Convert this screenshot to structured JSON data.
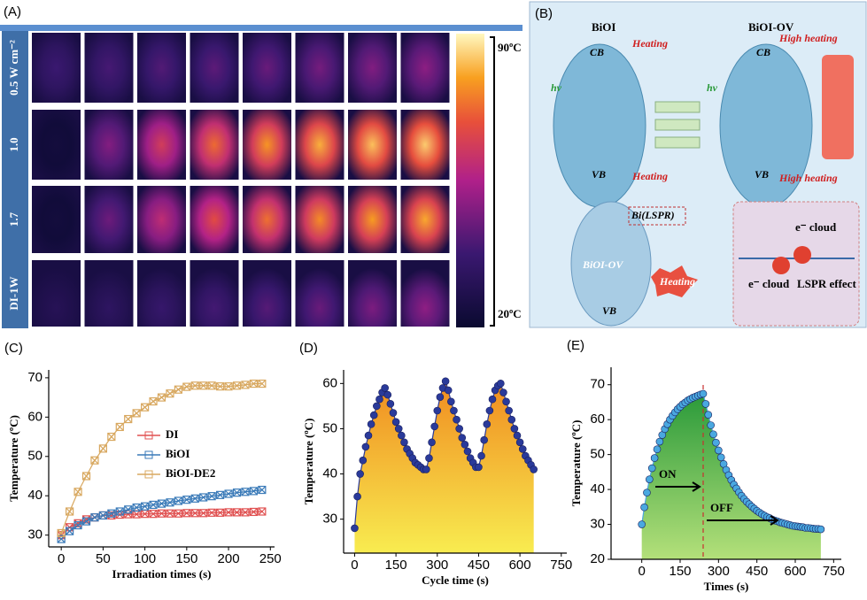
{
  "panel_a": {
    "label": "(A)",
    "rows": [
      "0.5 W cm⁻²",
      "1.0",
      "1.7",
      "DI-1W"
    ],
    "scale_max": "90ºC",
    "scale_min": "20ºC"
  },
  "panel_b": {
    "label": "(B)",
    "left": {
      "title": "BiOI",
      "light": "hv",
      "cb": "CB",
      "vb": "VB",
      "heat_top": "Heating",
      "heat_bottom": "Heating"
    },
    "right": {
      "title": "BiOI-OV",
      "light": "hv",
      "cb": "CB",
      "vb": "VB",
      "heat_top": "High heating",
      "heat_bottom": "High heating"
    },
    "bottom": {
      "bi": "Bi(LSPR)",
      "body": "BiOI-OV",
      "vb": "VB",
      "heating": "Heating",
      "cloud_top": "e⁻ cloud",
      "cloud_bottom": "e⁻ cloud",
      "effect": "LSPR effect"
    }
  },
  "chart_data": [
    {
      "type": "line",
      "label": "(C)",
      "xlabel": "Irradiation times (s)",
      "ylabel": "Temperature (ºC)",
      "marker": "x-box",
      "legend": "center-right",
      "x": [
        0,
        10,
        20,
        30,
        40,
        50,
        60,
        70,
        80,
        90,
        100,
        110,
        120,
        130,
        140,
        150,
        160,
        170,
        180,
        190,
        200,
        210,
        220,
        230,
        240
      ],
      "series": [
        {
          "name": "DI",
          "color": "#e05050",
          "values": [
            30,
            32,
            33,
            34,
            34.5,
            35,
            35,
            35.2,
            35.3,
            35.3,
            35.4,
            35.4,
            35.5,
            35.5,
            35.5,
            35.6,
            35.6,
            35.6,
            35.7,
            35.7,
            35.8,
            35.8,
            35.8,
            35.9,
            36
          ]
        },
        {
          "name": "BiOI",
          "color": "#3a7ab8",
          "values": [
            29,
            31,
            32.5,
            33.5,
            34.5,
            35,
            35.5,
            36,
            36.5,
            37,
            37.3,
            37.7,
            38,
            38.3,
            38.7,
            39,
            39.3,
            39.6,
            39.9,
            40.2,
            40.5,
            40.8,
            41,
            41.2,
            41.5
          ]
        },
        {
          "name": "BiOI-DE2",
          "color": "#d8a860",
          "values": [
            30.5,
            36,
            41,
            45,
            49,
            52,
            55,
            57.5,
            59.5,
            61,
            62.5,
            64,
            65,
            66,
            67,
            67.7,
            68,
            68,
            68,
            67.8,
            67.8,
            68,
            68.2,
            68.5,
            68.5
          ]
        }
      ],
      "xlim": [
        -15,
        255
      ],
      "ylim": [
        27,
        72
      ],
      "xticks": [
        0,
        50,
        100,
        150,
        200,
        250
      ],
      "yticks": [
        30,
        40,
        50,
        60,
        70
      ]
    },
    {
      "type": "line",
      "label": "(D)",
      "xlabel": "Cycle time (s)",
      "ylabel": "Temperature (ºC)",
      "marker": "circle",
      "fill": [
        "#f08c20",
        "#f8ec50"
      ],
      "x": [
        0,
        10,
        20,
        30,
        40,
        50,
        60,
        70,
        80,
        90,
        100,
        110,
        120,
        130,
        140,
        150,
        160,
        170,
        180,
        190,
        200,
        210,
        220,
        230,
        240,
        250,
        260,
        270,
        280,
        290,
        300,
        310,
        320,
        330,
        340,
        350,
        360,
        370,
        380,
        390,
        400,
        410,
        420,
        430,
        440,
        450,
        460,
        470,
        480,
        490,
        500,
        510,
        520,
        530,
        540,
        550,
        560,
        570,
        580,
        590,
        600,
        610,
        620,
        630,
        640,
        650
      ],
      "series": [
        {
          "color": "#2a3a9a",
          "values": [
            28,
            35,
            40,
            43,
            46,
            48.5,
            51,
            53,
            55,
            56.5,
            58,
            59,
            57.5,
            55.5,
            53.5,
            51.5,
            50,
            48.5,
            47,
            45.5,
            44.5,
            43.5,
            42.5,
            42,
            41.5,
            41,
            41,
            43.5,
            47,
            50.5,
            54,
            57,
            59,
            60.5,
            58.5,
            56,
            54,
            52,
            50,
            48,
            46.5,
            45,
            43.5,
            42.5,
            41.5,
            41.5,
            44,
            47.5,
            51,
            54,
            56.5,
            58.5,
            59.5,
            60,
            58,
            56,
            54,
            52,
            50,
            48.5,
            47,
            45.5,
            44,
            43,
            42,
            41
          ]
        }
      ],
      "xlim": [
        -40,
        770
      ],
      "ylim": [
        22.5,
        63
      ],
      "xticks": [
        0,
        150,
        300,
        450,
        600,
        750
      ],
      "yticks": [
        30,
        40,
        50,
        60
      ]
    },
    {
      "type": "line",
      "label": "(E)",
      "xlabel": "Times (s)",
      "ylabel": "Temperature (ºC)",
      "marker": "circle",
      "fill": [
        "#2a9a3a",
        "#b4e07a"
      ],
      "annotations": [
        {
          "text": "ON"
        },
        {
          "text": "OFF"
        }
      ],
      "vlines": [
        240
      ],
      "x": [
        0,
        10,
        20,
        30,
        40,
        50,
        60,
        70,
        80,
        90,
        100,
        110,
        120,
        130,
        140,
        150,
        160,
        170,
        180,
        190,
        200,
        210,
        220,
        230,
        240,
        250,
        260,
        270,
        280,
        290,
        300,
        310,
        320,
        330,
        340,
        350,
        360,
        370,
        380,
        390,
        400,
        410,
        420,
        430,
        440,
        450,
        460,
        470,
        480,
        490,
        500,
        510,
        520,
        530,
        540,
        550,
        560,
        570,
        580,
        590,
        600,
        610,
        620,
        630,
        640,
        650,
        660,
        670,
        680,
        690,
        700
      ],
      "series": [
        {
          "color": "#4aa8e0",
          "values": [
            30,
            34.9,
            39.1,
            42.9,
            46.1,
            49,
            51.5,
            53.7,
            55.6,
            57.3,
            58.7,
            60,
            61.1,
            62.1,
            63,
            63.7,
            64.4,
            64.9,
            65.5,
            65.9,
            66.3,
            66.6,
            66.9,
            67.2,
            67.4,
            64.5,
            61.4,
            58.4,
            55.8,
            53.4,
            51.2,
            49.2,
            47.3,
            45.6,
            44.1,
            42.7,
            41.4,
            40.3,
            39.2,
            38.2,
            37.3,
            36.5,
            35.8,
            35.1,
            34.5,
            33.9,
            33.4,
            32.9,
            32.5,
            32.1,
            31.8,
            31.4,
            31.1,
            30.9,
            30.6,
            30.4,
            30.2,
            30,
            29.8,
            29.6,
            29.5,
            29.4,
            29.3,
            29.2,
            29,
            29,
            28.9,
            28.8,
            28.7,
            28.7,
            28.6
          ]
        }
      ],
      "xlim": [
        -120,
        780
      ],
      "ylim": [
        20,
        75
      ],
      "xticks": [
        0,
        150,
        300,
        450,
        600,
        750
      ],
      "yticks": [
        20,
        30,
        40,
        50,
        60,
        70
      ]
    }
  ]
}
